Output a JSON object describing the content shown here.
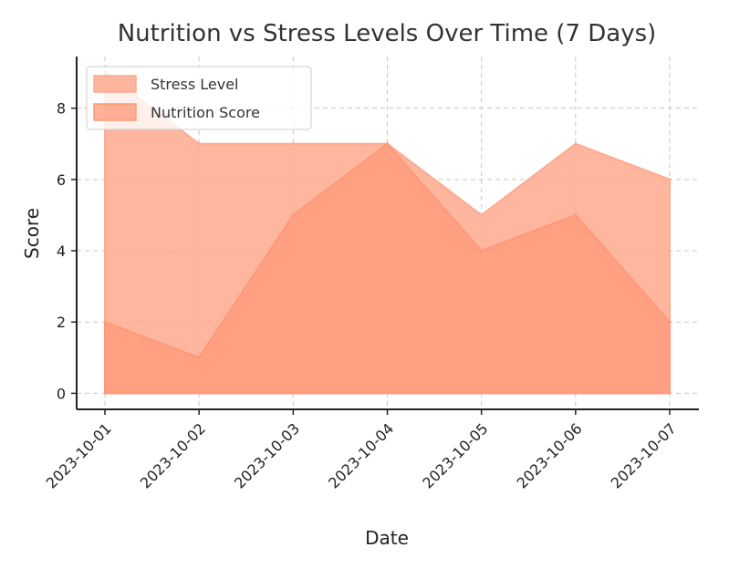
{
  "chart_data": {
    "type": "area",
    "title": "Nutrition vs Stress Levels Over Time (7 Days)",
    "xlabel": "Date",
    "ylabel": "Score",
    "x": [
      "2023-10-01",
      "2023-10-02",
      "2023-10-03",
      "2023-10-04",
      "2023-10-05",
      "2023-10-06",
      "2023-10-07"
    ],
    "series": [
      {
        "name": "Stress Level",
        "values": [
          9,
          7,
          7,
          7,
          5,
          7,
          6
        ],
        "color": "#ffa98e"
      },
      {
        "name": "Nutrition Score",
        "values": [
          2,
          1,
          5,
          7,
          4,
          5,
          2
        ],
        "color": "#ff9878"
      }
    ],
    "ylim": [
      -0.45,
      9.45
    ],
    "yticks": [
      0,
      2,
      4,
      6,
      8
    ],
    "grid": true,
    "legend": "top-left",
    "stacked": false
  }
}
